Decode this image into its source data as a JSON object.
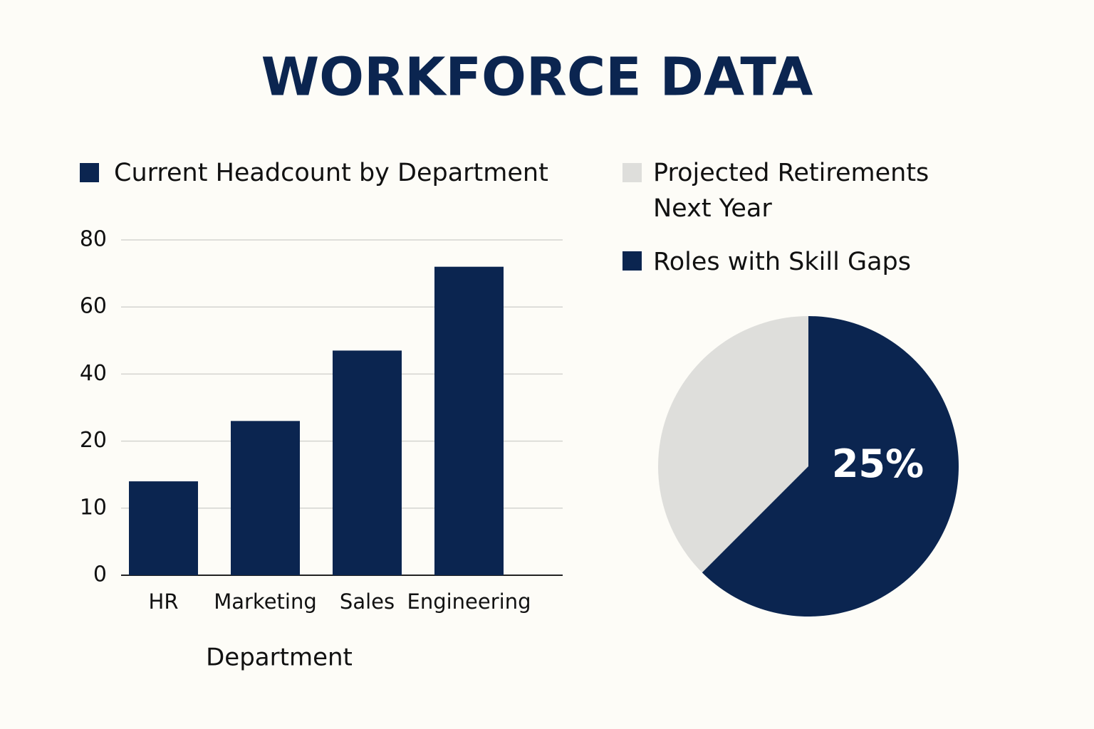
{
  "title": "WORKFORCE DATA",
  "chart_data": [
    {
      "type": "bar",
      "series": [
        {
          "name": "Current Headcount by Department",
          "color": "#0b2550",
          "values": [
            14,
            26,
            47,
            72
          ]
        }
      ],
      "categories": [
        "HR",
        "Marketing",
        "Sales",
        "Engineering"
      ],
      "x_label": "Department",
      "ylim": [
        0,
        80
      ],
      "yticks": [
        0,
        10,
        20,
        40,
        60,
        80
      ],
      "grid": true
    },
    {
      "type": "pie",
      "categories": [
        "Projected Retirements Next Year",
        "Roles with Skill Gaps"
      ],
      "values": [
        15,
        25
      ],
      "value_labels": [
        null,
        "25%"
      ],
      "colors": [
        "#dededb",
        "#0b2550"
      ]
    }
  ]
}
